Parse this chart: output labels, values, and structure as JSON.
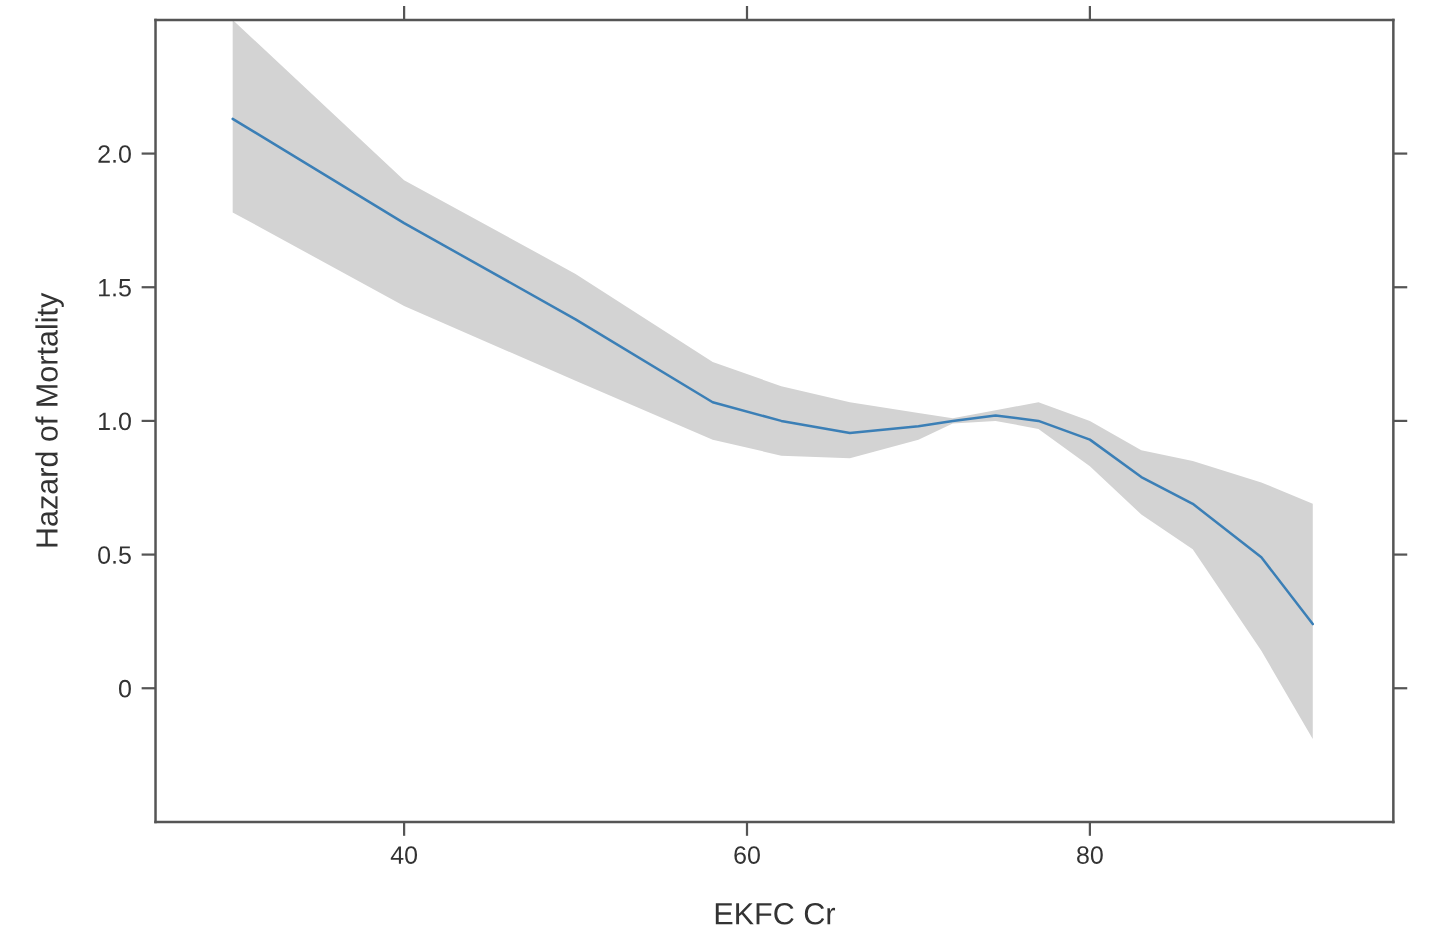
{
  "chart_data": {
    "type": "line",
    "xlabel": "EKFC Cr",
    "ylabel": "Hazard of Mortality",
    "xlim": [
      25.5,
      97.7
    ],
    "xticks": [
      40,
      60,
      80
    ],
    "ylim": [
      -0.5,
      2.5
    ],
    "yticks": [
      0,
      {
        "value": 0.5,
        "label": "0.5"
      },
      {
        "value": 1.0,
        "label": "1.0"
      },
      {
        "value": 1.5,
        "label": "1.5"
      },
      {
        "value": 2.0,
        "label": "2.0"
      }
    ],
    "grid": false,
    "series": [
      {
        "color": "#3b7fb6",
        "x": [
          30,
          40,
          50,
          58,
          62,
          66,
          70,
          72,
          74.5,
          77,
          80,
          83,
          86,
          90,
          93
        ],
        "values": [
          2.13,
          1.74,
          1.38,
          1.07,
          1.0,
          0.955,
          0.98,
          1.0,
          1.02,
          1.0,
          0.93,
          0.79,
          0.69,
          0.49,
          0.24
        ],
        "lower": [
          1.78,
          1.43,
          1.15,
          0.93,
          0.87,
          0.86,
          0.93,
          0.99,
          1.0,
          0.97,
          0.83,
          0.65,
          0.52,
          0.14,
          -0.19
        ],
        "upper": [
          2.5,
          1.9,
          1.55,
          1.22,
          1.13,
          1.07,
          1.03,
          1.01,
          1.04,
          1.07,
          1.0,
          0.89,
          0.85,
          0.77,
          0.69
        ]
      }
    ]
  }
}
